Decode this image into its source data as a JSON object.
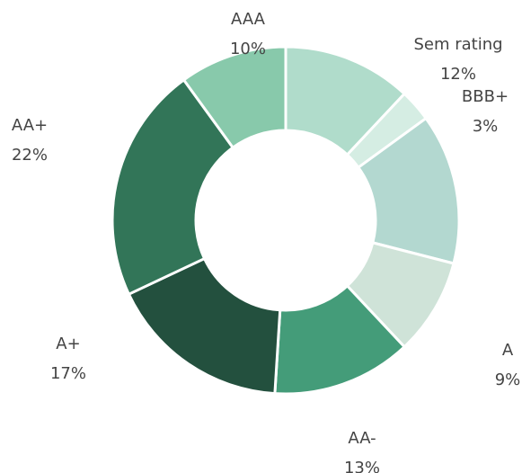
{
  "chart_data": {
    "type": "donut",
    "categories": [
      "Sem rating",
      "BBB+",
      null,
      "A",
      "AA-",
      "A+",
      "AA+",
      "AAA"
    ],
    "values": [
      12,
      3,
      14,
      9,
      13,
      17,
      22,
      10
    ],
    "value_labels": [
      "12%",
      "3%",
      null,
      "9%",
      "13%",
      "17%",
      "22%",
      "10%"
    ],
    "colors": [
      "#b0dccb",
      "#d5ede3",
      "#b3d8d0",
      "#cfe3d8",
      "#449c79",
      "#23503e",
      "#327558",
      "#88c9ab"
    ]
  }
}
